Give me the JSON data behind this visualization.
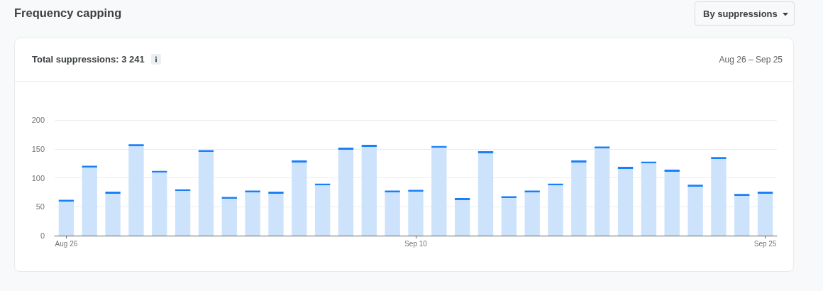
{
  "chart_data": {
    "type": "bar",
    "title": "Frequency capping",
    "subtitle": "Total suppressions: 3 241",
    "annotations": [
      "Aug 26 – Sep 25",
      "By suppressions"
    ],
    "categories": [
      "Aug 26",
      null,
      null,
      null,
      null,
      null,
      null,
      null,
      null,
      null,
      null,
      null,
      null,
      null,
      null,
      "Sep 10",
      null,
      null,
      null,
      null,
      null,
      null,
      null,
      null,
      null,
      null,
      null,
      null,
      null,
      null,
      "Sep 25"
    ],
    "values": [
      62,
      121,
      76,
      158,
      112,
      80,
      148,
      67,
      78,
      76,
      130,
      90,
      152,
      157,
      78,
      79,
      155,
      65,
      146,
      68,
      78,
      90,
      130,
      154,
      119,
      128,
      114,
      88,
      136,
      72,
      76
    ],
    "color": "#cde2fb",
    "ylim": [
      0,
      200
    ],
    "yticks": [
      0,
      50,
      100,
      150,
      200
    ],
    "grid": "y"
  }
}
